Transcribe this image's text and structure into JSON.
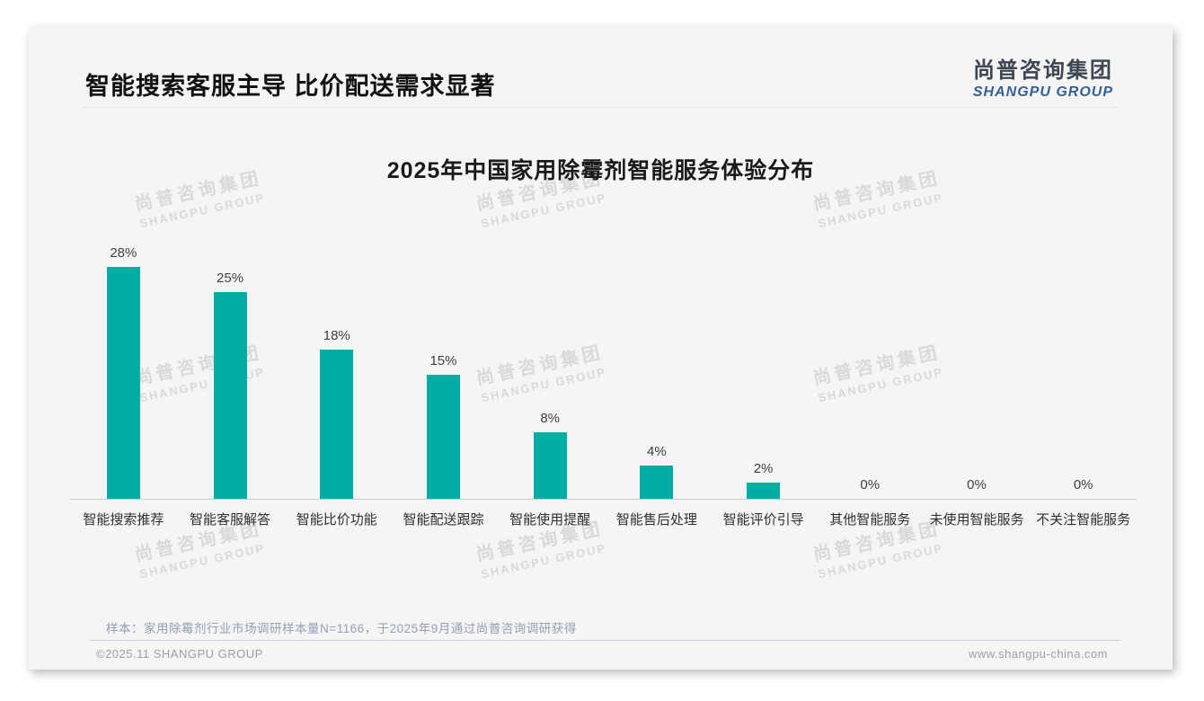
{
  "header": {
    "title": "智能搜索客服主导 比价配送需求显著",
    "logo_cn": "尚普咨询集团",
    "logo_en": "SHANGPU GROUP"
  },
  "chart_data": {
    "type": "bar",
    "title": "2025年中国家用除霉剂智能服务体验分布",
    "categories": [
      "智能搜索推荐",
      "智能客服解答",
      "智能比价功能",
      "智能配送跟踪",
      "智能使用提醒",
      "智能售后处理",
      "智能评价引导",
      "其他智能服务",
      "未使用智能服务",
      "不关注智能服务"
    ],
    "values": [
      28,
      25,
      18,
      15,
      8,
      4,
      2,
      0,
      0,
      0
    ],
    "unit": "%",
    "value_labels": [
      "28%",
      "25%",
      "18%",
      "15%",
      "8%",
      "4%",
      "2%",
      "0%",
      "0%",
      "0%"
    ],
    "bar_color": "#00ADA3",
    "xlabel": "",
    "ylabel": "",
    "ylim": [
      0,
      30
    ],
    "grid": false,
    "legend": false,
    "axis_visible": "x-only"
  },
  "watermark": {
    "line1": "尚普咨询集团",
    "line2": "SHANGPU GROUP"
  },
  "footer": {
    "sample_note": "样本：家用除霉剂行业市场调研样本量N=1166，于2025年9月通过尚普咨询调研获得",
    "copyright": "©2025.11 SHANGPU GROUP",
    "website": "www.shangpu-china.com"
  },
  "colors": {
    "bar": "#00ADA3",
    "card_background": "#f5f5f5",
    "logo_cn": "#3D4651",
    "logo_en": "#31609B",
    "sample_note": "#93A0B5",
    "footer_text": "#9E9E9E"
  }
}
